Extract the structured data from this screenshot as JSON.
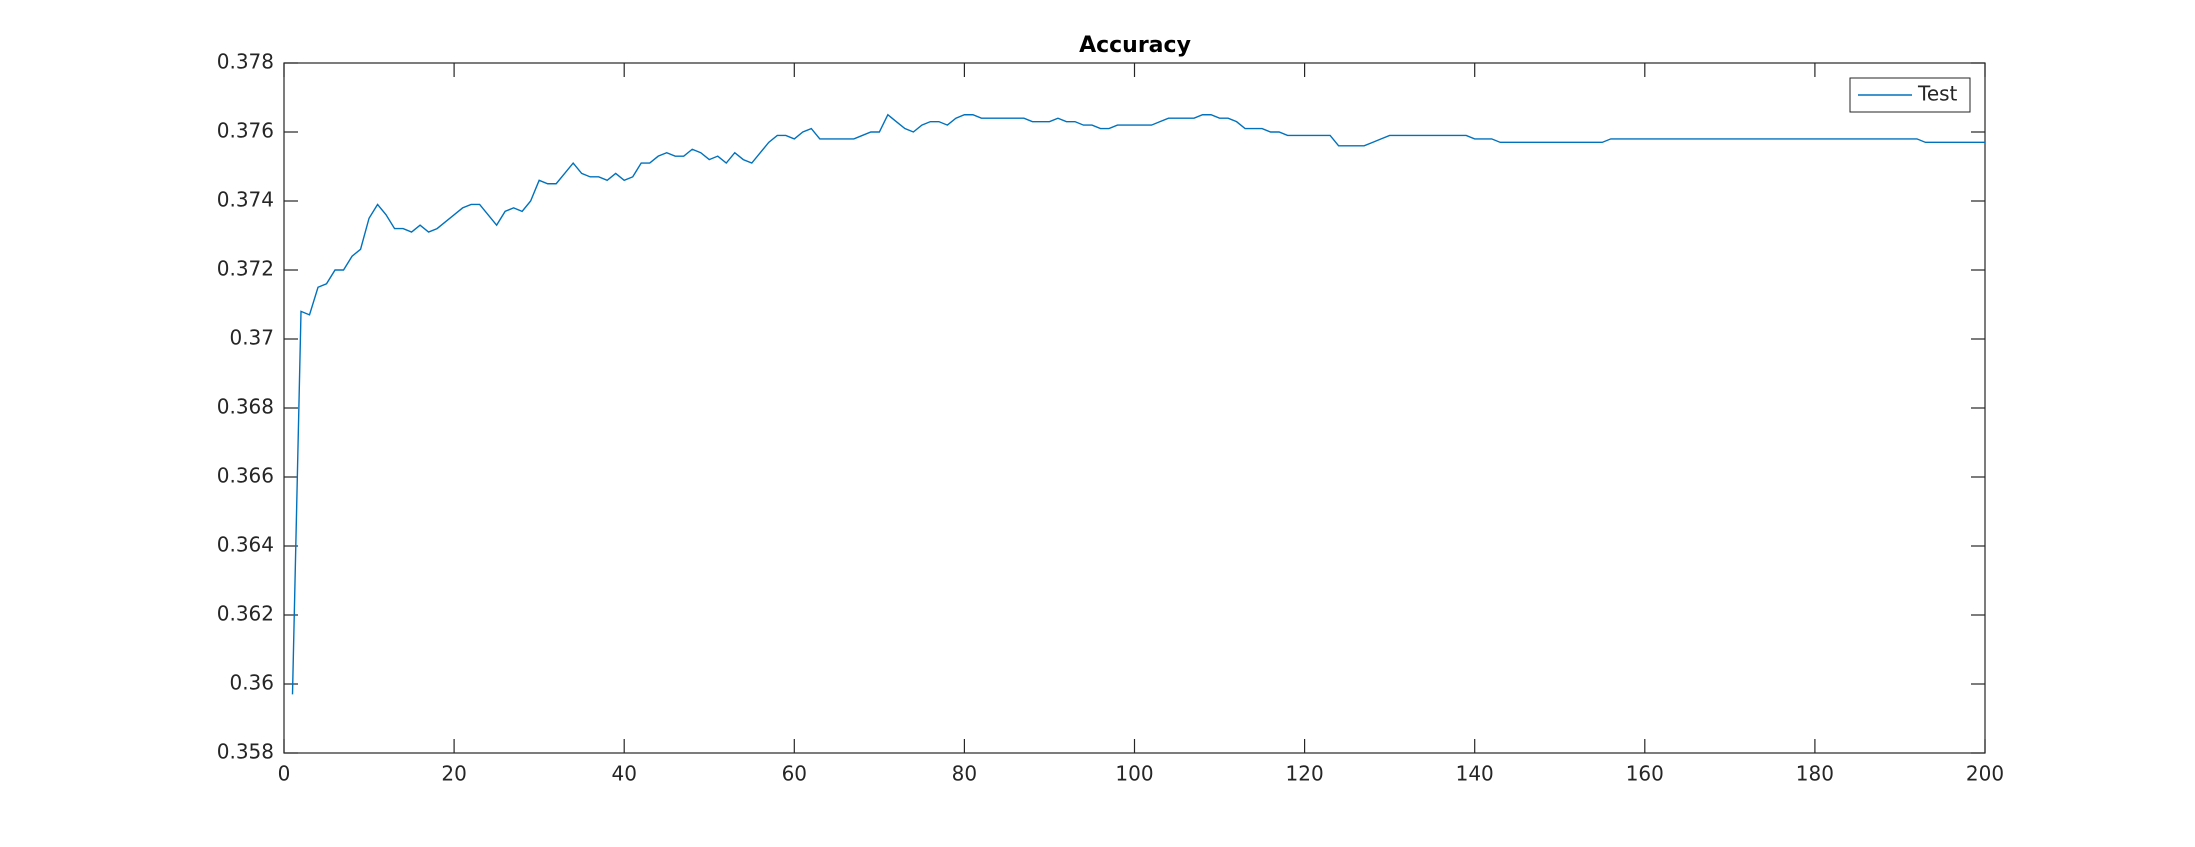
{
  "chart_data": {
    "type": "line",
    "title": "Accuracy",
    "x": [
      1,
      2,
      3,
      4,
      5,
      6,
      7,
      8,
      9,
      10,
      11,
      12,
      13,
      14,
      15,
      16,
      17,
      18,
      19,
      20,
      21,
      22,
      23,
      24,
      25,
      26,
      27,
      28,
      29,
      30,
      31,
      32,
      33,
      34,
      35,
      36,
      37,
      38,
      39,
      40,
      41,
      42,
      43,
      44,
      45,
      46,
      47,
      48,
      49,
      50,
      51,
      52,
      53,
      54,
      55,
      56,
      57,
      58,
      59,
      60,
      61,
      62,
      63,
      64,
      65,
      66,
      67,
      68,
      69,
      70,
      71,
      72,
      73,
      74,
      75,
      76,
      77,
      78,
      79,
      80,
      81,
      82,
      83,
      84,
      85,
      86,
      87,
      88,
      89,
      90,
      91,
      92,
      93,
      94,
      95,
      96,
      97,
      98,
      99,
      100,
      101,
      102,
      103,
      104,
      105,
      106,
      107,
      108,
      109,
      110,
      111,
      112,
      113,
      114,
      115,
      116,
      117,
      118,
      119,
      120,
      121,
      122,
      123,
      124,
      125,
      126,
      127,
      128,
      129,
      130,
      131,
      132,
      133,
      134,
      135,
      136,
      137,
      138,
      139,
      140,
      141,
      142,
      143,
      144,
      145,
      146,
      147,
      148,
      149,
      150,
      151,
      152,
      153,
      154,
      155,
      156,
      157,
      158,
      159,
      160,
      161,
      162,
      163,
      164,
      165,
      166,
      167,
      168,
      169,
      170,
      171,
      172,
      173,
      174,
      175,
      176,
      177,
      178,
      179,
      180,
      181,
      182,
      183,
      184,
      185,
      186,
      187,
      188,
      189,
      190,
      191,
      192,
      193,
      194,
      195,
      196,
      197,
      198,
      199,
      200
    ],
    "series": [
      {
        "name": "Test",
        "color": "#0072bd",
        "values": [
          0.3597,
          0.3708,
          0.3707,
          0.3715,
          0.3716,
          0.372,
          0.372,
          0.3724,
          0.3726,
          0.3735,
          0.3739,
          0.3736,
          0.3732,
          0.3732,
          0.3731,
          0.3733,
          0.3731,
          0.3732,
          0.3734,
          0.3736,
          0.3738,
          0.3739,
          0.3739,
          0.3736,
          0.3733,
          0.3737,
          0.3738,
          0.3737,
          0.374,
          0.3746,
          0.3745,
          0.3745,
          0.3748,
          0.3751,
          0.3748,
          0.3747,
          0.3747,
          0.3746,
          0.3748,
          0.3746,
          0.3747,
          0.3751,
          0.3751,
          0.3753,
          0.3754,
          0.3753,
          0.3753,
          0.3755,
          0.3754,
          0.3752,
          0.3753,
          0.3751,
          0.3754,
          0.3752,
          0.3751,
          0.3754,
          0.3757,
          0.3759,
          0.3759,
          0.3758,
          0.376,
          0.3761,
          0.3758,
          0.3758,
          0.3758,
          0.3758,
          0.3758,
          0.3759,
          0.376,
          0.376,
          0.3765,
          0.3763,
          0.3761,
          0.376,
          0.3762,
          0.3763,
          0.3763,
          0.3762,
          0.3764,
          0.3765,
          0.3765,
          0.3764,
          0.3764,
          0.3764,
          0.3764,
          0.3764,
          0.3764,
          0.3763,
          0.3763,
          0.3763,
          0.3764,
          0.3763,
          0.3763,
          0.3762,
          0.3762,
          0.3761,
          0.3761,
          0.3762,
          0.3762,
          0.3762,
          0.3762,
          0.3762,
          0.3763,
          0.3764,
          0.3764,
          0.3764,
          0.3764,
          0.3765,
          0.3765,
          0.3764,
          0.3764,
          0.3763,
          0.3761,
          0.3761,
          0.3761,
          0.376,
          0.376,
          0.3759,
          0.3759,
          0.3759,
          0.3759,
          0.3759,
          0.3759,
          0.3756,
          0.3756,
          0.3756,
          0.3756,
          0.3757,
          0.3758,
          0.3759,
          0.3759,
          0.3759,
          0.3759,
          0.3759,
          0.3759,
          0.3759,
          0.3759,
          0.3759,
          0.3759,
          0.3758,
          0.3758,
          0.3758,
          0.3757,
          0.3757,
          0.3757,
          0.3757,
          0.3757,
          0.3757,
          0.3757,
          0.3757,
          0.3757,
          0.3757,
          0.3757,
          0.3757,
          0.3757,
          0.3758,
          0.3758,
          0.3758,
          0.3758,
          0.3758,
          0.3758,
          0.3758,
          0.3758,
          0.3758,
          0.3758,
          0.3758,
          0.3758,
          0.3758,
          0.3758,
          0.3758,
          0.3758,
          0.3758,
          0.3758,
          0.3758,
          0.3758,
          0.3758,
          0.3758,
          0.3758,
          0.3758,
          0.3758,
          0.3758,
          0.3758,
          0.3758,
          0.3758,
          0.3758,
          0.3758,
          0.3758,
          0.3758,
          0.3758,
          0.3758,
          0.3758,
          0.3758,
          0.3757,
          0.3757,
          0.3757,
          0.3757,
          0.3757,
          0.3757,
          0.3757,
          0.3757
        ]
      }
    ],
    "xlim": [
      0,
      200
    ],
    "xticks": [
      0,
      20,
      40,
      60,
      80,
      100,
      120,
      140,
      160,
      180,
      200
    ],
    "ylim": [
      0.358,
      0.378
    ],
    "yticks": [
      0.358,
      0.36,
      0.362,
      0.364,
      0.366,
      0.368,
      0.37,
      0.372,
      0.374,
      0.376,
      0.378
    ],
    "legend": "upper-right"
  }
}
